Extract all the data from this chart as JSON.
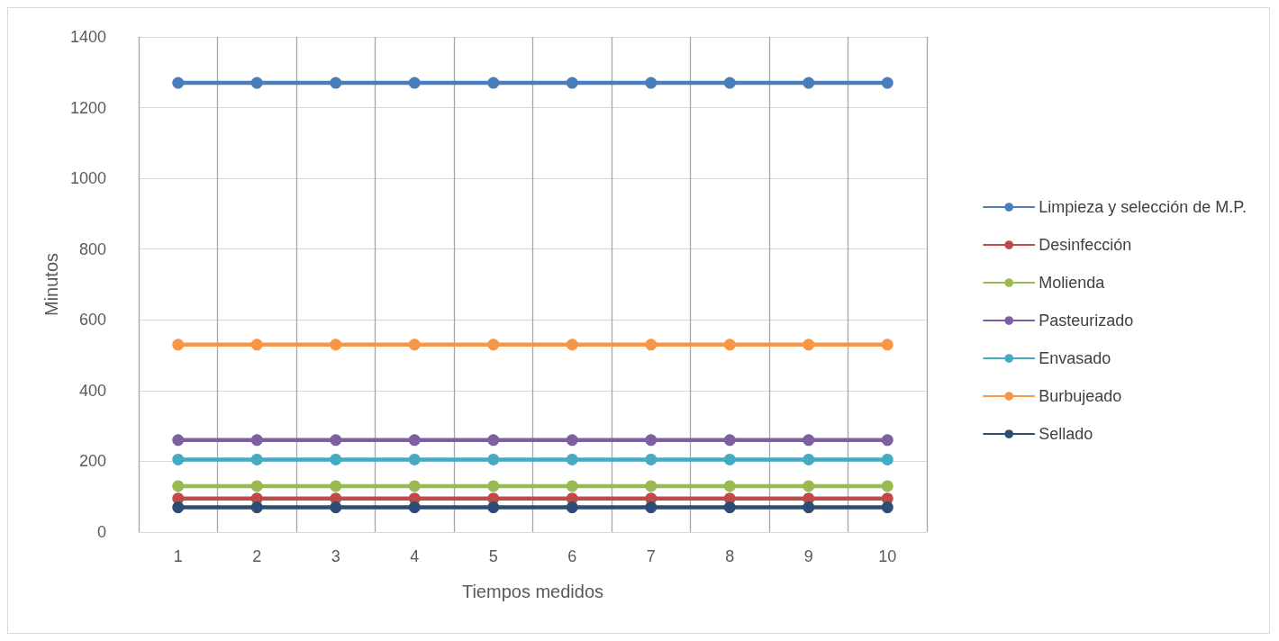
{
  "chart_data": {
    "type": "line",
    "xlabel": "Tiempos medidos",
    "ylabel": "Minutos",
    "categories": [
      "1",
      "2",
      "3",
      "4",
      "5",
      "6",
      "7",
      "8",
      "9",
      "10"
    ],
    "series": [
      {
        "name": "Limpieza y selección de M.P.",
        "color": "#4a7ebb",
        "values": [
          1270,
          1270,
          1270,
          1270,
          1270,
          1270,
          1270,
          1270,
          1270,
          1270
        ]
      },
      {
        "name": "Desinfección",
        "color": "#be4b48",
        "values": [
          95,
          95,
          95,
          95,
          95,
          95,
          95,
          95,
          95,
          95
        ]
      },
      {
        "name": "Molienda",
        "color": "#98b954",
        "values": [
          130,
          130,
          130,
          130,
          130,
          130,
          130,
          130,
          130,
          130
        ]
      },
      {
        "name": "Pasteurizado",
        "color": "#7d60a0",
        "values": [
          260,
          260,
          260,
          260,
          260,
          260,
          260,
          260,
          260,
          260
        ]
      },
      {
        "name": "Envasado",
        "color": "#46aac4",
        "values": [
          205,
          205,
          205,
          205,
          205,
          205,
          205,
          205,
          205,
          205
        ]
      },
      {
        "name": "Burbujeado",
        "color": "#f79646",
        "values": [
          530,
          530,
          530,
          530,
          530,
          530,
          530,
          530,
          530,
          530
        ]
      },
      {
        "name": "Sellado",
        "color": "#2c4d75",
        "values": [
          70,
          70,
          70,
          70,
          70,
          70,
          70,
          70,
          70,
          70
        ]
      }
    ],
    "ylim": [
      0,
      1400
    ],
    "yticks": [
      0,
      200,
      400,
      600,
      800,
      1000,
      1200,
      1400
    ],
    "grid": true,
    "legend": "right",
    "marker": "circle",
    "line_style": "solid"
  }
}
